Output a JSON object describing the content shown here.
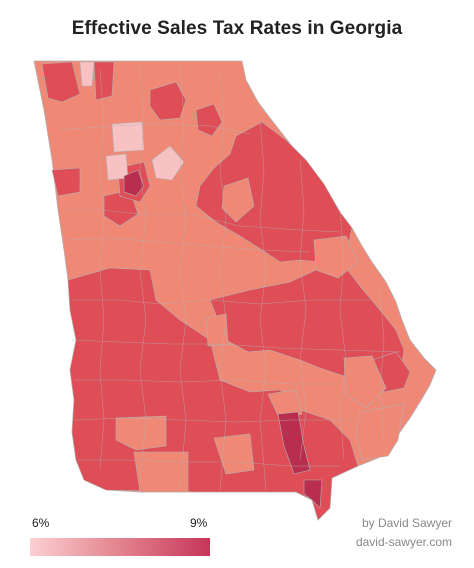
{
  "title": "Effective Sales Tax Rates in Georgia",
  "legend": {
    "min_label": "6%",
    "max_label": "9%",
    "gradient_colors": [
      "#fbd0d3",
      "#e58a93",
      "#c6365a"
    ]
  },
  "credit": {
    "line1": "by David Sawyer",
    "line2": "david-sawyer.com"
  },
  "colors": {
    "rate_6": "#f8c2c5",
    "rate_7": "#f08876",
    "rate_8": "#df4d57",
    "rate_9": "#b92e4f",
    "county_border": "#b2b2b2"
  },
  "map": {
    "state": "Georgia",
    "rate_classes": [
      "6%",
      "7%",
      "8%",
      "9%"
    ]
  }
}
